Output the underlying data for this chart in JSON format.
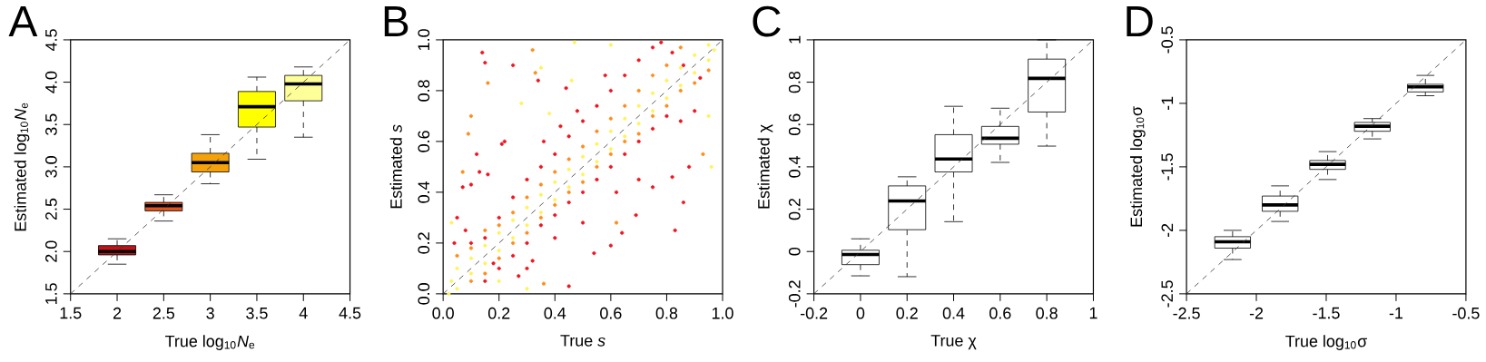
{
  "chart_data": [
    {
      "type": "box",
      "title": "A",
      "xlabel": "True log$_{10}$*N*$_{e}$",
      "ylabel": "Estimated log$_{10}$*N*$_{e}$",
      "x": [
        2,
        2.5,
        3,
        3.5,
        4
      ],
      "boxes": [
        {
          "low": 1.85,
          "q1": 1.96,
          "median": 2.0,
          "q3": 2.07,
          "high": 2.15
        },
        {
          "low": 2.36,
          "q1": 2.48,
          "median": 2.54,
          "q3": 2.58,
          "high": 2.67
        },
        {
          "low": 2.8,
          "q1": 2.94,
          "median": 3.05,
          "q3": 3.16,
          "high": 3.38
        },
        {
          "low": 3.09,
          "q1": 3.47,
          "median": 3.71,
          "q3": 3.89,
          "high": 4.06
        },
        {
          "low": 3.35,
          "q1": 3.78,
          "median": 3.98,
          "q3": 4.08,
          "high": 4.18
        }
      ],
      "colors": [
        "#c0141b",
        "#e4561c",
        "#f5a20a",
        "#ffff00",
        "#ffff99"
      ],
      "series": [
        {
          "type": "line",
          "x": [
            1.5,
            4.5
          ],
          "values": [
            1.5,
            4.5
          ],
          "color": "#333333",
          "line_style": "dashed"
        }
      ],
      "xlim": [
        1.5,
        4.5
      ],
      "ylim": [
        1.5,
        4.5
      ],
      "xticks": [
        1.5,
        2,
        2.5,
        3,
        3.5,
        4,
        4.5
      ],
      "yticks": [
        1.5,
        {
          "value": 2,
          "label": "2.0"
        },
        2.5,
        {
          "value": 3,
          "label": "3.0"
        },
        3.5,
        {
          "value": 4,
          "label": "4.0"
        },
        4.5
      ]
    },
    {
      "type": "scatter",
      "title": "B",
      "xlabel": "True *s*",
      "ylabel": "Estimated *s*",
      "series": [
        {
          "color": "#fff35a",
          "marker": "circle",
          "x": [
            0.02,
            0.03,
            0.05,
            0.05,
            0.1,
            0.1,
            0.15,
            0.15,
            0.2,
            0.2,
            0.25,
            0.25,
            0.3,
            0.3,
            0.35,
            0.35,
            0.4,
            0.4,
            0.45,
            0.45,
            0.5,
            0.5,
            0.55,
            0.55,
            0.6,
            0.6,
            0.65,
            0.65,
            0.7,
            0.7,
            0.75,
            0.75,
            0.8,
            0.8,
            0.85,
            0.85,
            0.9,
            0.9,
            0.95,
            0.95,
            0.97,
            0.28,
            0.35,
            0.46,
            0.38,
            0.2,
            0.3,
            0.96,
            0.95,
            0.03,
            0.47,
            0.6
          ],
          "values": [
            0.0,
            0.05,
            0.02,
            0.1,
            0.08,
            0.14,
            0.12,
            0.19,
            0.17,
            0.24,
            0.22,
            0.29,
            0.27,
            0.34,
            0.32,
            0.39,
            0.37,
            0.44,
            0.42,
            0.49,
            0.47,
            0.54,
            0.52,
            0.59,
            0.57,
            0.64,
            0.62,
            0.69,
            0.67,
            0.74,
            0.72,
            0.79,
            0.77,
            0.84,
            0.82,
            0.89,
            0.87,
            0.94,
            0.92,
            0.98,
            0.96,
            0.75,
            0.89,
            0.84,
            0.71,
            0.05,
            0.02,
            0.5,
            0.7,
            0.28,
            0.99,
            0.98
          ]
        },
        {
          "color": "#ff8c1a",
          "marker": "circle",
          "x": [
            0.05,
            0.1,
            0.15,
            0.2,
            0.25,
            0.3,
            0.35,
            0.4,
            0.45,
            0.5,
            0.55,
            0.6,
            0.65,
            0.7,
            0.75,
            0.8,
            0.85,
            0.1,
            0.15,
            0.2,
            0.25,
            0.3,
            0.35,
            0.4,
            0.45,
            0.5,
            0.55,
            0.6,
            0.65,
            0.7,
            0.75,
            0.8,
            0.85,
            0.9,
            0.95,
            0.1,
            0.16,
            0.33,
            0.36,
            0.62,
            0.09,
            0.07,
            0.93,
            0.32
          ],
          "values": [
            0.15,
            0.18,
            0.25,
            0.27,
            0.32,
            0.38,
            0.43,
            0.48,
            0.53,
            0.58,
            0.64,
            0.69,
            0.74,
            0.8,
            0.86,
            0.9,
            0.97,
            0.05,
            0.08,
            0.14,
            0.2,
            0.24,
            0.3,
            0.35,
            0.4,
            0.44,
            0.5,
            0.55,
            0.6,
            0.63,
            0.7,
            0.74,
            0.8,
            0.83,
            0.88,
            0.7,
            0.83,
            0.87,
            0.04,
            0.28,
            0.63,
            0.48,
            0.55,
            0.96
          ]
        },
        {
          "color": "#f0141e",
          "marker": "circle",
          "x": [
            0.14,
            0.15,
            0.25,
            0.34,
            0.44,
            0.45,
            0.54,
            0.6,
            0.64,
            0.83,
            0.86,
            0.69,
            0.12,
            0.13,
            0.16,
            0.21,
            0.22,
            0.07,
            0.1,
            0.05,
            0.04,
            0.08,
            0.1,
            0.15,
            0.2,
            0.25,
            0.3,
            0.35,
            0.4,
            0.45,
            0.5,
            0.55,
            0.6,
            0.65,
            0.7,
            0.75,
            0.78,
            0.82,
            0.58,
            0.48,
            0.42,
            0.36,
            0.15,
            0.2,
            0.25,
            0.3,
            0.35,
            0.4,
            0.45,
            0.5,
            0.55,
            0.6,
            0.65,
            0.7,
            0.75,
            0.8,
            0.85,
            0.9,
            0.88,
            0.82,
            0.75,
            0.7,
            0.62,
            0.5,
            0.4,
            0.3,
            0.18,
            0.92,
            0.86,
            0.32,
            0.27
          ],
          "values": [
            0.95,
            0.91,
            0.9,
            0.84,
            0.81,
            0.03,
            0.16,
            0.19,
            0.24,
            0.25,
            0.36,
            0.31,
            0.55,
            0.48,
            0.47,
            0.59,
            0.6,
            0.42,
            0.43,
            0.3,
            0.2,
            0.25,
            0.2,
            0.22,
            0.3,
            0.38,
            0.45,
            0.5,
            0.55,
            0.62,
            0.68,
            0.74,
            0.8,
            0.86,
            0.92,
            0.97,
            0.99,
            0.95,
            0.86,
            0.72,
            0.66,
            0.6,
            0.05,
            0.1,
            0.15,
            0.2,
            0.27,
            0.31,
            0.36,
            0.4,
            0.45,
            0.5,
            0.55,
            0.6,
            0.65,
            0.7,
            0.68,
            0.72,
            0.5,
            0.46,
            0.42,
            0.45,
            0.4,
            0.28,
            0.22,
            0.1,
            0.12,
            0.85,
            0.9,
            0.13,
            0.07
          ]
        },
        {
          "type": "line",
          "x": [
            0,
            1
          ],
          "values": [
            0,
            1
          ],
          "color": "#333333",
          "line_style": "dashed"
        }
      ],
      "xlim": [
        0,
        1
      ],
      "ylim": [
        0,
        1
      ],
      "xticks": [
        {
          "value": 0,
          "label": "0.0"
        },
        0.2,
        0.4,
        0.6,
        0.8,
        {
          "value": 1,
          "label": "1.0"
        }
      ],
      "yticks": [
        {
          "value": 0,
          "label": "0.0"
        },
        0.2,
        0.4,
        0.6,
        0.8,
        {
          "value": 1,
          "label": "1.0"
        }
      ]
    },
    {
      "type": "box",
      "title": "C",
      "xlabel": "True χ",
      "ylabel": "Estimated χ",
      "x": [
        0,
        0.2,
        0.4,
        0.6,
        0.8
      ],
      "boxes": [
        {
          "low": -0.115,
          "q1": -0.062,
          "median": -0.014,
          "q3": 0.006,
          "high": 0.06
        },
        {
          "low": -0.119,
          "q1": 0.103,
          "median": 0.239,
          "q3": 0.31,
          "high": 0.353
        },
        {
          "low": 0.141,
          "q1": 0.376,
          "median": 0.437,
          "q3": 0.552,
          "high": 0.686
        },
        {
          "low": 0.421,
          "q1": 0.507,
          "median": 0.535,
          "q3": 0.591,
          "high": 0.677
        },
        {
          "low": 0.498,
          "q1": 0.659,
          "median": 0.818,
          "q3": 0.909,
          "high": 1.0
        }
      ],
      "color": "#ffffff",
      "series": [
        {
          "type": "line",
          "x": [
            -0.2,
            1
          ],
          "values": [
            -0.2,
            1
          ],
          "color": "#333333",
          "line_style": "dashed"
        }
      ],
      "xlim": [
        -0.2,
        1
      ],
      "ylim": [
        -0.2,
        1
      ],
      "xticks": [
        -0.2,
        0,
        0.2,
        0.4,
        0.6,
        0.8,
        1
      ],
      "yticks": [
        -0.2,
        0,
        0.2,
        0.4,
        0.6,
        0.8,
        1
      ]
    },
    {
      "type": "box",
      "title": "D",
      "xlabel": "True log$_{10}$σ",
      "ylabel": "Estimated log$_{10}$σ",
      "x": [
        -2.17,
        -1.83,
        -1.49,
        -1.17,
        -0.79
      ],
      "boxes": [
        {
          "low": -2.23,
          "q1": -2.14,
          "median": -2.09,
          "q3": -2.05,
          "high": -2.0
        },
        {
          "low": -1.93,
          "q1": -1.85,
          "median": -1.8,
          "q3": -1.73,
          "high": -1.65
        },
        {
          "low": -1.6,
          "q1": -1.52,
          "median": -1.48,
          "q3": -1.45,
          "high": -1.38
        },
        {
          "low": -1.28,
          "q1": -1.22,
          "median": -1.18,
          "q3": -1.15,
          "high": -1.12
        },
        {
          "low": -0.94,
          "q1": -0.91,
          "median": -0.87,
          "q3": -0.85,
          "high": -0.78
        }
      ],
      "color": "#ffffff",
      "series": [
        {
          "type": "line",
          "x": [
            -2.5,
            -0.5
          ],
          "values": [
            -2.5,
            -0.5
          ],
          "color": "#333333",
          "line_style": "dashed"
        }
      ],
      "xlim": [
        -2.5,
        -0.5
      ],
      "ylim": [
        -2.5,
        -0.5
      ],
      "xticks": [
        -2.5,
        -2,
        -1.5,
        -1,
        -0.5
      ],
      "yticks": [
        -2.5,
        -2,
        -1.5,
        -1,
        -0.5
      ]
    }
  ]
}
